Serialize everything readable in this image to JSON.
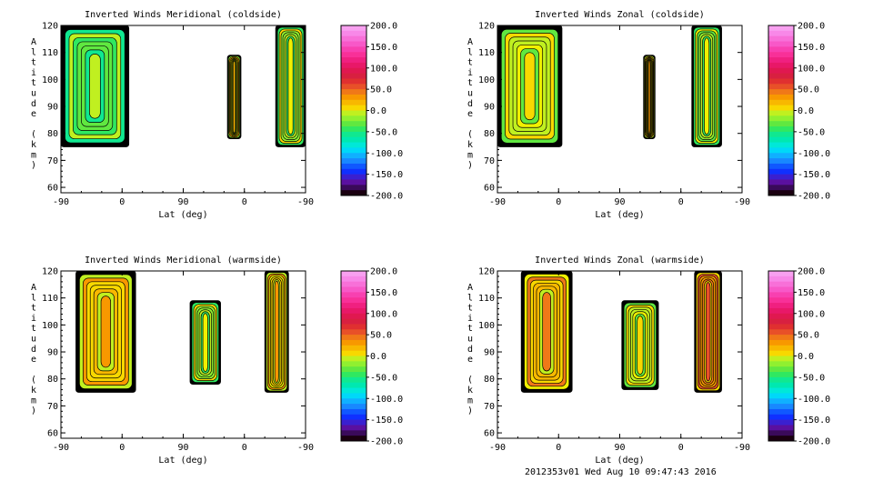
{
  "footer": "2012353v01 Wed Aug 10 09:47:43 2016",
  "chart_data": [
    {
      "type": "heatmap",
      "title": "Inverted Winds Meridional (coldside)",
      "xlabel": "Lat (deg)",
      "ylabel": "Altitude (km)",
      "x_tick_labels": [
        "-90",
        "0",
        "90",
        "0",
        "-90"
      ],
      "y_tick_labels": [
        "60",
        "70",
        "80",
        "90",
        "100",
        "110",
        "120"
      ],
      "ylim": [
        58,
        120
      ],
      "colorbar": {
        "range": [
          -200,
          200
        ],
        "tick_labels": [
          "200.0",
          "150.0",
          "100.0",
          "50.0",
          "0.0",
          "-50.0",
          "-100.0",
          "-150.0",
          "-200.0"
        ]
      },
      "regions": [
        {
          "x_range": [
            -90,
            10
          ],
          "alt_range": [
            75,
            120
          ],
          "mean_value": -40
        },
        {
          "x_range": [
            155,
            175
          ],
          "alt_range": [
            78,
            109
          ],
          "mean_value": 5
        },
        {
          "x_range": [
            226,
            270
          ],
          "alt_range": [
            75,
            120
          ],
          "mean_value": -20
        }
      ]
    },
    {
      "type": "heatmap",
      "title": "Inverted Winds Zonal (coldside)",
      "xlabel": "Lat (deg)",
      "ylabel": "Altitude (km)",
      "x_tick_labels": [
        "-90",
        "0",
        "90",
        "0",
        "-90"
      ],
      "y_tick_labels": [
        "60",
        "70",
        "80",
        "90",
        "100",
        "110",
        "120"
      ],
      "ylim": [
        58,
        120
      ],
      "colorbar": {
        "range": [
          -200,
          200
        ],
        "tick_labels": [
          "200.0",
          "150.0",
          "100.0",
          "50.0",
          "0.0",
          "-50.0",
          "-100.0",
          "-150.0",
          "-200.0"
        ]
      },
      "regions": [
        {
          "x_range": [
            -90,
            5
          ],
          "alt_range": [
            75,
            120
          ],
          "mean_value": -10
        },
        {
          "x_range": [
            125,
            142
          ],
          "alt_range": [
            78,
            109
          ],
          "mean_value": 10
        },
        {
          "x_range": [
            196,
            240
          ],
          "alt_range": [
            75,
            120
          ],
          "mean_value": -25
        }
      ]
    },
    {
      "type": "heatmap",
      "title": "Inverted Winds Meridional (warmside)",
      "xlabel": "Lat (deg)",
      "ylabel": "Altitude (km)",
      "x_tick_labels": [
        "-90",
        "0",
        "90",
        "0",
        "-90"
      ],
      "y_tick_labels": [
        "60",
        "70",
        "80",
        "90",
        "100",
        "110",
        "120"
      ],
      "ylim": [
        58,
        120
      ],
      "colorbar": {
        "range": [
          -200,
          200
        ],
        "tick_labels": [
          "200.0",
          "150.0",
          "100.0",
          "50.0",
          "0.0",
          "-50.0",
          "-100.0",
          "-150.0",
          "-200.0"
        ]
      },
      "regions": [
        {
          "x_range": [
            -68,
            20
          ],
          "alt_range": [
            75,
            120
          ],
          "mean_value": 15
        },
        {
          "x_range": [
            100,
            145
          ],
          "alt_range": [
            78,
            109
          ],
          "mean_value": -20
        },
        {
          "x_range": [
            210,
            245
          ],
          "alt_range": [
            75,
            120
          ],
          "mean_value": 10
        }
      ]
    },
    {
      "type": "heatmap",
      "title": "Inverted Winds Zonal (warmside)",
      "xlabel": "Lat (deg)",
      "ylabel": "Altitude (km)",
      "x_tick_labels": [
        "-90",
        "0",
        "90",
        "0",
        "-90"
      ],
      "y_tick_labels": [
        "60",
        "70",
        "80",
        "90",
        "100",
        "110",
        "120"
      ],
      "ylim": [
        58,
        120
      ],
      "colorbar": {
        "range": [
          -200,
          200
        ],
        "tick_labels": [
          "200.0",
          "150.0",
          "100.0",
          "50.0",
          "0.0",
          "-50.0",
          "-100.0",
          "-150.0",
          "-200.0"
        ]
      },
      "regions": [
        {
          "x_range": [
            -55,
            20
          ],
          "alt_range": [
            75,
            120
          ],
          "mean_value": 20
        },
        {
          "x_range": [
            93,
            147
          ],
          "alt_range": [
            76,
            109
          ],
          "mean_value": -10
        },
        {
          "x_range": [
            200,
            240
          ],
          "alt_range": [
            75,
            120
          ],
          "mean_value": 40
        }
      ]
    }
  ]
}
